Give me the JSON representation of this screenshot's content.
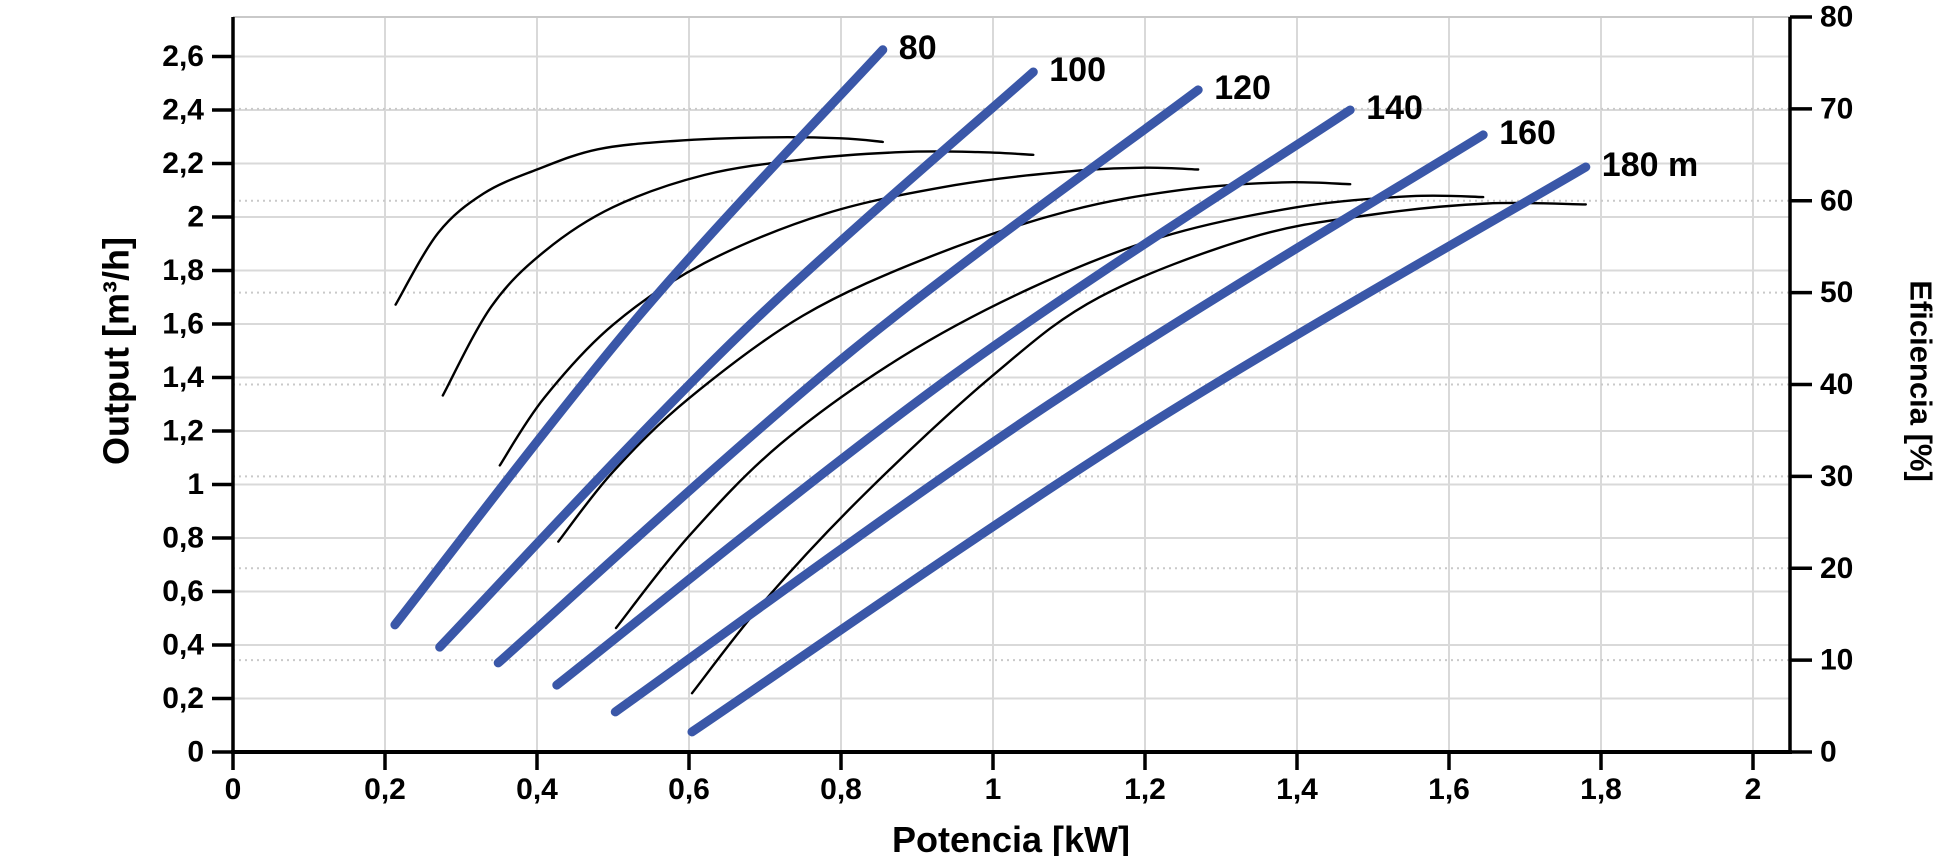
{
  "chart_data": {
    "type": "line",
    "title": "",
    "x_axis": {
      "label": "Potencia [kW]",
      "min": 0,
      "max": 2.05,
      "tick_step": 0.2,
      "ticks": [
        {
          "v": 0.0,
          "label": "0"
        },
        {
          "v": 0.2,
          "label": "0,2"
        },
        {
          "v": 0.4,
          "label": "0,4"
        },
        {
          "v": 0.6,
          "label": "0,6"
        },
        {
          "v": 0.8,
          "label": "0,8"
        },
        {
          "v": 1.0,
          "label": "1"
        },
        {
          "v": 1.2,
          "label": "1,2"
        },
        {
          "v": 1.4,
          "label": "1,4"
        },
        {
          "v": 1.6,
          "label": "1,6"
        },
        {
          "v": 1.8,
          "label": "1,8"
        },
        {
          "v": 2.0,
          "label": "2"
        }
      ]
    },
    "y_axis_left": {
      "label": "Output [m³/h]",
      "min": 0,
      "max": 2.75,
      "tick_step": 0.2,
      "grid": "solid",
      "ticks": [
        {
          "v": 0.0,
          "label": "0"
        },
        {
          "v": 0.2,
          "label": "0,2"
        },
        {
          "v": 0.4,
          "label": "0,4"
        },
        {
          "v": 0.6,
          "label": "0,6"
        },
        {
          "v": 0.8,
          "label": "0,8"
        },
        {
          "v": 1.0,
          "label": "1"
        },
        {
          "v": 1.2,
          "label": "1,2"
        },
        {
          "v": 1.4,
          "label": "1,4"
        },
        {
          "v": 1.6,
          "label": "1,6"
        },
        {
          "v": 1.8,
          "label": "1,8"
        },
        {
          "v": 2.0,
          "label": "2"
        },
        {
          "v": 2.2,
          "label": "2,2"
        },
        {
          "v": 2.4,
          "label": "2,4"
        },
        {
          "v": 2.6,
          "label": "2,6"
        }
      ]
    },
    "y_axis_right": {
      "label": "Eficiencia [%]",
      "min": 0,
      "max": 80,
      "tick_step": 10,
      "grid": "dotted",
      "ticks": [
        {
          "v": 0,
          "label": "0"
        },
        {
          "v": 10,
          "label": "10"
        },
        {
          "v": 20,
          "label": "20"
        },
        {
          "v": 30,
          "label": "30"
        },
        {
          "v": 40,
          "label": "40"
        },
        {
          "v": 50,
          "label": "50"
        },
        {
          "v": 60,
          "label": "60"
        },
        {
          "v": 70,
          "label": "70"
        },
        {
          "v": 80,
          "label": "80"
        }
      ]
    },
    "legend": "none",
    "head_curves_unit": "head in m, power curves: x = Potencia [kW], y = Output [m³/h], left axis",
    "head_curves": [
      {
        "label": "80",
        "head_m": 80,
        "points": [
          [
            0.213,
            0.475
          ],
          [
            0.534,
            1.63
          ],
          [
            0.855,
            2.625
          ]
        ]
      },
      {
        "label": "100",
        "head_m": 100,
        "points": [
          [
            0.272,
            0.392
          ],
          [
            0.663,
            1.55
          ],
          [
            1.053,
            2.542
          ]
        ]
      },
      {
        "label": "120",
        "head_m": 120,
        "points": [
          [
            0.349,
            0.333
          ],
          [
            0.81,
            1.49
          ],
          [
            1.27,
            2.475
          ]
        ]
      },
      {
        "label": "140",
        "head_m": 140,
        "points": [
          [
            0.426,
            0.25
          ],
          [
            0.948,
            1.41
          ],
          [
            1.47,
            2.4
          ]
        ]
      },
      {
        "label": "160",
        "head_m": 160,
        "points": [
          [
            0.503,
            0.15
          ],
          [
            1.074,
            1.3
          ],
          [
            1.645,
            2.307
          ]
        ]
      },
      {
        "label": "180 m",
        "head_m": 180,
        "points": [
          [
            0.604,
            0.075
          ],
          [
            1.192,
            1.2
          ],
          [
            1.78,
            2.187
          ]
        ]
      }
    ],
    "efficiency_curves_unit": "x = Potencia [kW], y = Eficiencia [%], right axis",
    "efficiency_curves": [
      {
        "head_m": 80,
        "points": [
          [
            0.214,
            48.7
          ],
          [
            0.27,
            56.5
          ],
          [
            0.33,
            60.8
          ],
          [
            0.4,
            63.4
          ],
          [
            0.48,
            65.6
          ],
          [
            0.58,
            66.5
          ],
          [
            0.7,
            66.9
          ],
          [
            0.8,
            66.8
          ],
          [
            0.855,
            66.4
          ]
        ]
      },
      {
        "head_m": 100,
        "points": [
          [
            0.276,
            38.8
          ],
          [
            0.34,
            48.5
          ],
          [
            0.41,
            54.5
          ],
          [
            0.5,
            59.3
          ],
          [
            0.62,
            62.8
          ],
          [
            0.75,
            64.5
          ],
          [
            0.88,
            65.3
          ],
          [
            0.98,
            65.3
          ],
          [
            1.053,
            65.0
          ]
        ]
      },
      {
        "head_m": 120,
        "points": [
          [
            0.351,
            31.2
          ],
          [
            0.41,
            38.6
          ],
          [
            0.5,
            46.5
          ],
          [
            0.62,
            53.2
          ],
          [
            0.78,
            58.6
          ],
          [
            0.95,
            61.7
          ],
          [
            1.1,
            63.2
          ],
          [
            1.2,
            63.6
          ],
          [
            1.27,
            63.4
          ]
        ]
      },
      {
        "head_m": 140,
        "points": [
          [
            0.428,
            22.9
          ],
          [
            0.5,
            30.5
          ],
          [
            0.6,
            38.5
          ],
          [
            0.75,
            47.5
          ],
          [
            0.92,
            54.0
          ],
          [
            1.1,
            58.9
          ],
          [
            1.25,
            61.2
          ],
          [
            1.38,
            62.0
          ],
          [
            1.47,
            61.8
          ]
        ]
      },
      {
        "head_m": 160,
        "points": [
          [
            0.504,
            13.5
          ],
          [
            0.6,
            23.5
          ],
          [
            0.72,
            33.5
          ],
          [
            0.88,
            43.0
          ],
          [
            1.05,
            50.5
          ],
          [
            1.22,
            56.0
          ],
          [
            1.4,
            59.3
          ],
          [
            1.55,
            60.5
          ],
          [
            1.645,
            60.4
          ]
        ]
      },
      {
        "head_m": 180,
        "points": [
          [
            0.604,
            6.4
          ],
          [
            0.7,
            16.5
          ],
          [
            0.83,
            28.0
          ],
          [
            1.0,
            41.0
          ],
          [
            1.14,
            49.5
          ],
          [
            1.34,
            56.0
          ],
          [
            1.5,
            58.5
          ],
          [
            1.65,
            59.7
          ],
          [
            1.78,
            59.6
          ]
        ]
      }
    ],
    "colors": {
      "head_curve": "#3A57A8",
      "efficiency_curve": "#000000",
      "grid_solid": "#D9D9D9",
      "grid_dotted": "#C9C9C9",
      "top_border": "#C9C9C9",
      "axis": "#000000",
      "background": "#FFFFFF"
    }
  }
}
